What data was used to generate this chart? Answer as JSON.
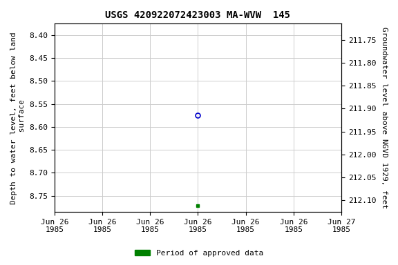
{
  "title": "USGS 420922072423003 MA-WVW  145",
  "ylabel_left": "Depth to water level, feet below land\n surface",
  "ylabel_right": "Groundwater level above NGVD 1929, feet",
  "ylim_left": [
    8.375,
    8.785
  ],
  "ylim_right": [
    212.125,
    211.715
  ],
  "yticks_left": [
    8.4,
    8.45,
    8.5,
    8.55,
    8.6,
    8.65,
    8.7,
    8.75
  ],
  "yticks_right": [
    212.1,
    212.05,
    212.0,
    211.95,
    211.9,
    211.85,
    211.8,
    211.75
  ],
  "xtick_labels": [
    "Jun 26\n1985",
    "Jun 26\n1985",
    "Jun 26\n1985",
    "Jun 26\n1985",
    "Jun 26\n1985",
    "Jun 26\n1985",
    "Jun 27\n1985"
  ],
  "point1_x": 3.0,
  "point1_y": 8.575,
  "point1_color": "#0000cc",
  "point1_marker": "o",
  "point2_x": 3.0,
  "point2_y": 8.772,
  "point2_color": "#008000",
  "point2_marker": "s",
  "legend_label": "Period of approved data",
  "legend_color": "#008000",
  "background_color": "#ffffff",
  "grid_color": "#cccccc",
  "title_fontsize": 10,
  "label_fontsize": 8,
  "tick_fontsize": 8,
  "x_num_ticks": 7,
  "x_range": [
    0,
    6
  ]
}
